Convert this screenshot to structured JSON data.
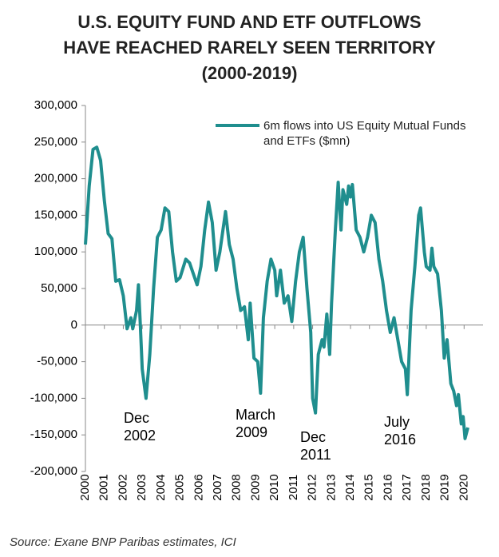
{
  "chart_data": {
    "type": "line",
    "title": "U.S. EQUITY FUND AND ETF OUTFLOWS\nHAVE REACHED RARELY SEEN TERRITORY\n(2000-2019)",
    "source": "Source: Exane BNP Paribas estimates, ICI",
    "xlim": [
      2000,
      2021
    ],
    "xticks": [
      2000,
      2001,
      2002,
      2003,
      2004,
      2005,
      2006,
      2007,
      2008,
      2009,
      2010,
      2011,
      2012,
      2013,
      2014,
      2015,
      2016,
      2017,
      2018,
      2019,
      2020
    ],
    "ylim": [
      -200000,
      300000
    ],
    "yticks": [
      {
        "value": -200000,
        "label": "-200,000"
      },
      {
        "value": -150000,
        "label": "-150,000"
      },
      {
        "value": -100000,
        "label": "-100,000"
      },
      {
        "value": -50000,
        "label": "-50,000"
      },
      0,
      {
        "value": 50000,
        "label": "50,000"
      },
      {
        "value": 100000,
        "label": "100,000"
      },
      {
        "value": 150000,
        "label": "150,000"
      },
      {
        "value": 200000,
        "label": "200,000"
      },
      {
        "value": 250000,
        "label": "250,000"
      },
      {
        "value": 300000,
        "label": "300,000"
      }
    ],
    "annotations": [
      "Dec\n2002",
      "March\n2009",
      "Dec\n2011",
      "July\n2016"
    ],
    "series": [
      {
        "name": "6m flows into US  Equity Mutual Funds and ETFs ($mn)",
        "color": "#1f8e8e",
        "x": [
          2000.0,
          2000.2,
          2000.4,
          2000.6,
          2000.8,
          2001.0,
          2001.2,
          2001.4,
          2001.6,
          2001.8,
          2002.0,
          2002.2,
          2002.4,
          2002.5,
          2002.7,
          2002.8,
          2002.9,
          2003.0,
          2003.2,
          2003.4,
          2003.6,
          2003.8,
          2004.0,
          2004.2,
          2004.4,
          2004.6,
          2004.8,
          2005.0,
          2005.3,
          2005.5,
          2005.7,
          2005.9,
          2006.1,
          2006.3,
          2006.5,
          2006.7,
          2006.9,
          2007.1,
          2007.4,
          2007.6,
          2007.8,
          2008.0,
          2008.2,
          2008.4,
          2008.6,
          2008.7,
          2008.9,
          2009.1,
          2009.25,
          2009.4,
          2009.6,
          2009.8,
          2010.0,
          2010.1,
          2010.3,
          2010.5,
          2010.7,
          2010.9,
          2011.1,
          2011.3,
          2011.5,
          2011.7,
          2011.9,
          2012.0,
          2012.15,
          2012.3,
          2012.5,
          2012.6,
          2012.75,
          2012.9,
          2013.0,
          2013.2,
          2013.35,
          2013.5,
          2013.6,
          2013.8,
          2013.9,
          2014.0,
          2014.1,
          2014.3,
          2014.5,
          2014.7,
          2014.9,
          2015.1,
          2015.3,
          2015.5,
          2015.7,
          2015.9,
          2016.1,
          2016.3,
          2016.5,
          2016.7,
          2016.9,
          2017.0,
          2017.2,
          2017.4,
          2017.6,
          2017.7,
          2017.9,
          2018.0,
          2018.2,
          2018.3,
          2018.4,
          2018.6,
          2018.8,
          2018.95,
          2019.1,
          2019.3,
          2019.45,
          2019.6,
          2019.7,
          2019.85,
          2019.95,
          2020.05,
          2020.2
        ],
        "values": [
          110000,
          190000,
          240000,
          243000,
          225000,
          170000,
          125000,
          118000,
          60000,
          62000,
          40000,
          -5000,
          10000,
          -5000,
          20000,
          55000,
          0,
          -60000,
          -100000,
          -40000,
          50000,
          120000,
          130000,
          160000,
          155000,
          100000,
          60000,
          65000,
          90000,
          85000,
          70000,
          55000,
          80000,
          130000,
          168000,
          140000,
          75000,
          100000,
          155000,
          110000,
          90000,
          50000,
          20000,
          25000,
          -20000,
          30000,
          -45000,
          -50000,
          -93000,
          10000,
          60000,
          90000,
          75000,
          40000,
          75000,
          30000,
          40000,
          5000,
          60000,
          100000,
          120000,
          50000,
          -10000,
          -100000,
          -120000,
          -40000,
          -20000,
          -30000,
          15000,
          -40000,
          30000,
          130000,
          195000,
          130000,
          185000,
          165000,
          190000,
          175000,
          192000,
          130000,
          120000,
          100000,
          120000,
          150000,
          140000,
          90000,
          60000,
          20000,
          -10000,
          10000,
          -20000,
          -50000,
          -60000,
          -95000,
          20000,
          80000,
          150000,
          160000,
          100000,
          80000,
          75000,
          105000,
          80000,
          70000,
          20000,
          -45000,
          -20000,
          -80000,
          -90000,
          -110000,
          -95000,
          -135000,
          -125000,
          -155000,
          -140000
        ]
      }
    ]
  }
}
